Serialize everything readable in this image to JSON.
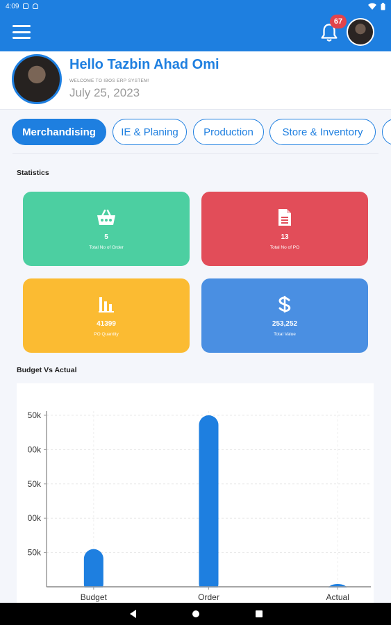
{
  "status_bar": {
    "time": "4:09"
  },
  "header": {
    "menu_icon": "hamburger-menu-icon",
    "bell_icon": "bell-icon",
    "notification_count": "67"
  },
  "profile": {
    "greeting": "Hello Tazbin Ahad Omi",
    "welcome": "WELCOME TO IBOS ERP SYSTEM!",
    "date": "July 25, 2023"
  },
  "tabs": [
    {
      "label": "Merchandising",
      "active": true
    },
    {
      "label": "IE & Planing",
      "active": false
    },
    {
      "label": "Production",
      "active": false
    },
    {
      "label": "Store & Inventory",
      "active": false
    }
  ],
  "statistics": {
    "title": "Statistics",
    "cards": [
      {
        "icon": "basket-icon",
        "value": "5",
        "label": "Total No of Order",
        "color": "#4ccfa1"
      },
      {
        "icon": "document-icon",
        "value": "13",
        "label": "Total No of PO",
        "color": "#e24d59"
      },
      {
        "icon": "bar-chart-icon",
        "value": "41399",
        "label": "PO Quantity",
        "color": "#fbbb32"
      },
      {
        "icon": "dollar-icon",
        "value": "253,252",
        "label": "Total Value",
        "color": "#4a8fe2"
      }
    ]
  },
  "chart_section": {
    "title": "Budget Vs Actual"
  },
  "chart_data": {
    "type": "bar",
    "categories": [
      "Budget",
      "Order",
      "Actual"
    ],
    "values": [
      55000,
      250000,
      1000
    ],
    "y_ticks": [
      "50k",
      "00k",
      "50k",
      "00k",
      "50k"
    ],
    "y_tick_values": [
      50000,
      100000,
      150000,
      200000,
      250000
    ],
    "ylim": [
      0,
      250000
    ],
    "bar_color": "#1e7fe0",
    "grid": true
  }
}
